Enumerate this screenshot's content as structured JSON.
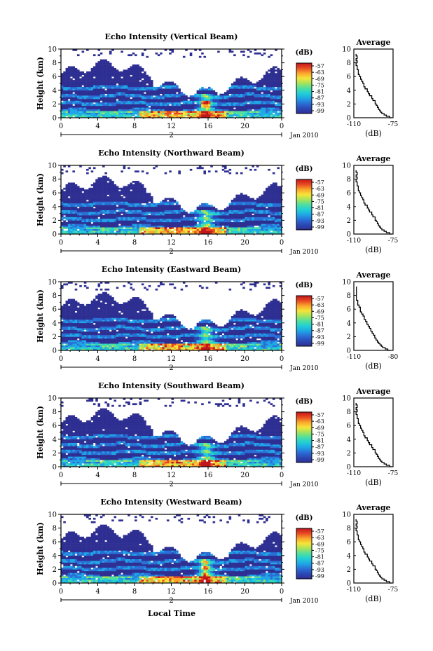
{
  "figure": {
    "date_label": "Jan 2010",
    "day_marker": "2",
    "xlabel_bottom": "Local Time",
    "colorbar_unit": "(dB)",
    "colorbar_ticks": [
      "-57",
      "-63",
      "-69",
      "-75",
      "-81",
      "-87",
      "-93",
      "-99"
    ],
    "avg_title": "Average",
    "avg_xlabel": "(dB)",
    "ylabel": "Height (km)",
    "colors": {
      "background": "#ffffff",
      "colormap": [
        "#2e2f92",
        "#2b48b6",
        "#2a6fd6",
        "#1fa6e6",
        "#22cfd4",
        "#4fdfa0",
        "#a6e35a",
        "#f6e43a",
        "#f9a52c",
        "#e84a22",
        "#c0161a"
      ]
    }
  },
  "chart_data": [
    {
      "type": "heatmap",
      "title": "Echo Intensity (Vertical Beam)",
      "beam": "vertical",
      "x_ticks": [
        "0",
        "4",
        "8",
        "12",
        "16",
        "20",
        "0"
      ],
      "y_ticks": [
        "0",
        "2",
        "4",
        "6",
        "8",
        "10"
      ],
      "xlim": [
        0,
        24
      ],
      "ylim": [
        0,
        10
      ],
      "clim": [
        -99,
        -57
      ],
      "cbar_label": "(dB)",
      "profile": {
        "title": "Average",
        "xlabel": "(dB)",
        "x_ticks": [
          "-110",
          "-75"
        ],
        "y_ticks": [
          "0",
          "2",
          "4",
          "6",
          "8",
          "10"
        ],
        "xlim": [
          -110,
          -75
        ],
        "height_km": [
          0.0,
          0.2,
          0.4,
          0.6,
          0.8,
          1.0,
          1.2,
          1.5,
          1.8,
          2.0,
          2.2,
          2.5,
          2.8,
          3.0,
          3.2,
          3.5,
          3.8,
          4.0,
          4.2,
          4.5,
          4.8,
          5.0,
          5.3,
          5.6,
          6.0,
          6.3,
          6.6,
          7.0,
          7.3,
          7.6,
          8.0,
          8.3,
          8.6,
          9.0,
          9.3
        ],
        "mean_db": [
          -76,
          -78,
          -81,
          -83,
          -85,
          -86,
          -87,
          -88,
          -89,
          -90,
          -91,
          -91,
          -93,
          -94,
          -94,
          -96,
          -97,
          -98,
          -98,
          -100,
          -101,
          -101,
          -102,
          -103,
          -104,
          -105,
          -106,
          -106,
          -107,
          -107,
          -108,
          -107,
          -108,
          -107,
          -108
        ]
      }
    },
    {
      "type": "heatmap",
      "title": "Echo Intensity (Northward Beam)",
      "beam": "north",
      "x_ticks": [
        "0",
        "4",
        "8",
        "12",
        "16",
        "20",
        "0"
      ],
      "y_ticks": [
        "0",
        "2",
        "4",
        "6",
        "8",
        "10"
      ],
      "xlim": [
        0,
        24
      ],
      "ylim": [
        0,
        10
      ],
      "clim": [
        -99,
        -57
      ],
      "cbar_label": "(dB)",
      "profile": {
        "title": "Average",
        "xlabel": "(dB)",
        "x_ticks": [
          "-110",
          "-75"
        ],
        "y_ticks": [
          "0",
          "2",
          "4",
          "6",
          "8",
          "10"
        ],
        "xlim": [
          -110,
          -75
        ],
        "height_km": [
          0.0,
          0.2,
          0.4,
          0.6,
          0.8,
          1.0,
          1.2,
          1.5,
          1.8,
          2.0,
          2.2,
          2.5,
          2.8,
          3.0,
          3.2,
          3.5,
          3.8,
          4.0,
          4.2,
          4.5,
          4.8,
          5.0,
          5.3,
          5.6,
          6.0,
          6.3,
          6.6,
          7.0,
          7.3,
          7.6,
          8.0,
          8.3,
          8.6,
          9.0,
          9.3
        ],
        "mean_db": [
          -76,
          -78,
          -81,
          -83,
          -85,
          -86,
          -87,
          -88,
          -89,
          -90,
          -91,
          -91,
          -93,
          -94,
          -94,
          -96,
          -97,
          -98,
          -98,
          -100,
          -101,
          -101,
          -102,
          -103,
          -104,
          -105,
          -106,
          -106,
          -107,
          -107,
          -108,
          -107,
          -108,
          -107,
          -108
        ]
      }
    },
    {
      "type": "heatmap",
      "title": "Echo Intensity (Eastward Beam)",
      "beam": "east",
      "x_ticks": [
        "0",
        "4",
        "8",
        "12",
        "16",
        "20",
        "0"
      ],
      "y_ticks": [
        "0",
        "2",
        "4",
        "6",
        "8",
        "10"
      ],
      "xlim": [
        0,
        24
      ],
      "ylim": [
        0,
        10
      ],
      "clim": [
        -99,
        -57
      ],
      "cbar_label": "(dB)",
      "profile": {
        "title": "Average",
        "xlabel": "(dB)",
        "x_ticks": [
          "-110",
          "-80"
        ],
        "y_ticks": [
          "0",
          "2",
          "4",
          "6",
          "8",
          "10"
        ],
        "xlim": [
          -110,
          -80
        ],
        "height_km": [
          0.0,
          0.2,
          0.4,
          0.6,
          0.8,
          1.0,
          1.2,
          1.5,
          1.8,
          2.0,
          2.2,
          2.5,
          2.8,
          3.0,
          3.2,
          3.5,
          3.8,
          4.0,
          4.2,
          4.5,
          4.8,
          5.0,
          5.3,
          5.6,
          6.0,
          6.3,
          6.6,
          7.0,
          7.3,
          7.6,
          8.0,
          8.3,
          8.6,
          9.0,
          9.3
        ],
        "mean_db": [
          -82,
          -84,
          -86,
          -88,
          -89,
          -90,
          -91,
          -92,
          -93,
          -94,
          -94,
          -95,
          -96,
          -97,
          -97,
          -98,
          -99,
          -100,
          -100,
          -101,
          -102,
          -102,
          -103,
          -104,
          -105,
          -105,
          -106,
          -107,
          -107,
          -108,
          -108,
          -108,
          -108,
          -108,
          -108
        ]
      }
    },
    {
      "type": "heatmap",
      "title": "Echo Intensity (Southward Beam)",
      "beam": "south",
      "x_ticks": [
        "0",
        "4",
        "8",
        "12",
        "16",
        "20",
        "0"
      ],
      "y_ticks": [
        "0",
        "2",
        "4",
        "6",
        "8",
        "10"
      ],
      "xlim": [
        0,
        24
      ],
      "ylim": [
        0,
        10
      ],
      "clim": [
        -99,
        -57
      ],
      "cbar_label": "(dB)",
      "profile": {
        "title": "Average",
        "xlabel": "(dB)",
        "x_ticks": [
          "-110",
          "-75"
        ],
        "y_ticks": [
          "0",
          "2",
          "4",
          "6",
          "8",
          "10"
        ],
        "xlim": [
          -110,
          -75
        ],
        "height_km": [
          0.0,
          0.2,
          0.4,
          0.6,
          0.8,
          1.0,
          1.2,
          1.5,
          1.8,
          2.0,
          2.2,
          2.5,
          2.8,
          3.0,
          3.2,
          3.5,
          3.8,
          4.0,
          4.2,
          4.5,
          4.8,
          5.0,
          5.3,
          5.6,
          6.0,
          6.3,
          6.6,
          7.0,
          7.3,
          7.6,
          8.0,
          8.3,
          8.6,
          9.0,
          9.3
        ],
        "mean_db": [
          -76,
          -78,
          -81,
          -83,
          -85,
          -86,
          -87,
          -88,
          -89,
          -90,
          -91,
          -91,
          -93,
          -94,
          -94,
          -96,
          -97,
          -98,
          -98,
          -100,
          -101,
          -101,
          -102,
          -103,
          -104,
          -105,
          -106,
          -106,
          -107,
          -107,
          -108,
          -107,
          -108,
          -107,
          -108
        ]
      }
    },
    {
      "type": "heatmap",
      "title": "Echo Intensity (Westward Beam)",
      "beam": "west",
      "x_ticks": [
        "0",
        "4",
        "8",
        "12",
        "16",
        "20",
        "0"
      ],
      "y_ticks": [
        "0",
        "2",
        "4",
        "6",
        "8",
        "10"
      ],
      "xlim": [
        0,
        24
      ],
      "ylim": [
        0,
        10
      ],
      "clim": [
        -99,
        -57
      ],
      "cbar_label": "(dB)",
      "profile": {
        "title": "Average",
        "xlabel": "(dB)",
        "x_ticks": [
          "-110",
          "-75"
        ],
        "y_ticks": [
          "0",
          "2",
          "4",
          "6",
          "8",
          "10"
        ],
        "xlim": [
          -110,
          -75
        ],
        "height_km": [
          0.0,
          0.2,
          0.4,
          0.6,
          0.8,
          1.0,
          1.2,
          1.5,
          1.8,
          2.0,
          2.2,
          2.5,
          2.8,
          3.0,
          3.2,
          3.5,
          3.8,
          4.0,
          4.2,
          4.5,
          4.8,
          5.0,
          5.3,
          5.6,
          6.0,
          6.3,
          6.6,
          7.0,
          7.3,
          7.6,
          8.0,
          8.3,
          8.6,
          9.0,
          9.3
        ],
        "mean_db": [
          -76,
          -78,
          -81,
          -83,
          -85,
          -86,
          -87,
          -88,
          -89,
          -90,
          -91,
          -91,
          -93,
          -94,
          -94,
          -96,
          -97,
          -98,
          -98,
          -100,
          -101,
          -101,
          -102,
          -103,
          -104,
          -105,
          -106,
          -106,
          -107,
          -107,
          -108,
          -107,
          -108,
          -107,
          -108
        ]
      }
    }
  ]
}
